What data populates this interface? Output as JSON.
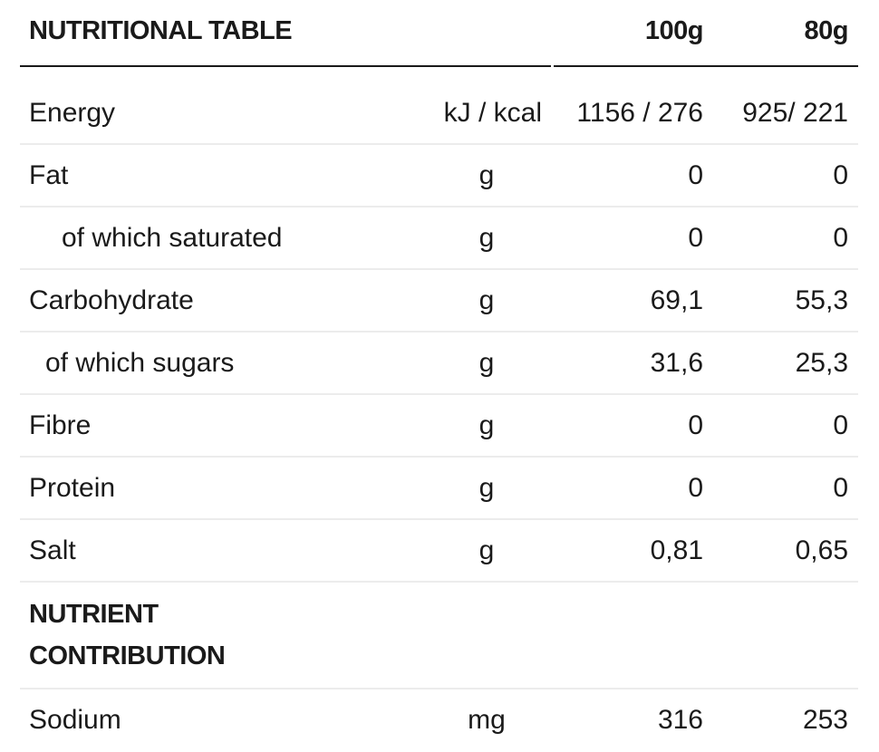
{
  "header": {
    "title": "NUTRITIONAL TABLE",
    "col_100g": "100g",
    "col_80g": "80g"
  },
  "rows": [
    {
      "name": "Energy",
      "unit": "kJ / kcal",
      "v100": "1156 / 276",
      "v80": "925/ 221"
    },
    {
      "name": "Fat",
      "unit": "g",
      "v100": "0",
      "v80": "0"
    },
    {
      "name": "of which saturated",
      "unit": "g",
      "v100": "0",
      "v80": "0"
    },
    {
      "name": "Carbohydrate",
      "unit": "g",
      "v100": "69,1",
      "v80": "55,3"
    },
    {
      "name": "of which sugars",
      "unit": "g",
      "v100": "31,6",
      "v80": "25,3"
    },
    {
      "name": "Fibre",
      "unit": "g",
      "v100": "0",
      "v80": "0"
    },
    {
      "name": "Protein",
      "unit": "g",
      "v100": "0",
      "v80": "0"
    },
    {
      "name": "Salt",
      "unit": "g",
      "v100": "0,81",
      "v80": "0,65"
    }
  ],
  "section": {
    "title": "NUTRIENT CONTRIBUTION"
  },
  "section_rows": [
    {
      "name": "Sodium",
      "unit": "mg",
      "v100": "316",
      "v80": "253"
    }
  ]
}
